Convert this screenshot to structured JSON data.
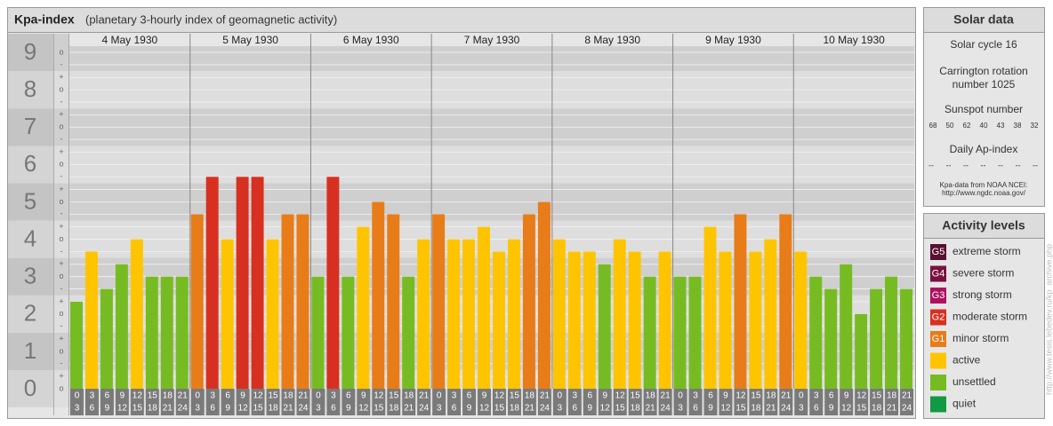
{
  "chart_data": {
    "type": "bar",
    "title": "Kpa-index",
    "subtitle": "(planetary 3-hourly index of geomagnetic activity)",
    "days": [
      "4 May 1930",
      "5 May 1930",
      "6 May 1930",
      "7 May 1930",
      "8 May 1930",
      "9 May 1930",
      "10 May 1930"
    ],
    "hour_ranges": [
      [
        "0",
        "3"
      ],
      [
        "3",
        "6"
      ],
      [
        "6",
        "9"
      ],
      [
        "9",
        "12"
      ],
      [
        "12",
        "15"
      ],
      [
        "15",
        "18"
      ],
      [
        "18",
        "21"
      ],
      [
        "21",
        "24"
      ]
    ],
    "values": [
      2.33,
      3.67,
      2.67,
      3.33,
      4,
      3,
      3,
      3,
      4.67,
      5.67,
      4,
      5.67,
      5.67,
      4,
      4.67,
      4.67,
      3,
      5.67,
      3,
      4.33,
      5,
      4.67,
      3,
      4,
      4.67,
      4,
      4,
      4.33,
      3.67,
      4,
      4.67,
      5,
      4,
      3.67,
      3.67,
      3.33,
      4,
      3.67,
      3,
      3.67,
      3,
      3,
      4.33,
      3.67,
      4.67,
      3.67,
      4,
      4.67,
      3.67,
      3,
      2.67,
      3.33,
      2,
      2.67,
      3,
      2.67
    ],
    "colors": [
      "#77bb22",
      "#ffc400",
      "#77bb22",
      "#77bb22",
      "#ffc400",
      "#77bb22",
      "#77bb22",
      "#77bb22",
      "#e87c18",
      "#d83020",
      "#ffc400",
      "#d83020",
      "#d83020",
      "#ffc400",
      "#e87c18",
      "#e87c18",
      "#77bb22",
      "#d83020",
      "#77bb22",
      "#ffc400",
      "#e87c18",
      "#e87c18",
      "#77bb22",
      "#ffc400",
      "#e87c18",
      "#ffc400",
      "#ffc400",
      "#ffc400",
      "#ffc400",
      "#ffc400",
      "#e87c18",
      "#e87c18",
      "#ffc400",
      "#ffc400",
      "#ffc400",
      "#77bb22",
      "#ffc400",
      "#ffc400",
      "#77bb22",
      "#ffc400",
      "#77bb22",
      "#77bb22",
      "#ffc400",
      "#ffc400",
      "#e87c18",
      "#ffc400",
      "#ffc400",
      "#e87c18",
      "#ffc400",
      "#77bb22",
      "#77bb22",
      "#77bb22",
      "#77bb22",
      "#77bb22",
      "#77bb22",
      "#77bb22"
    ],
    "ylim": [
      0,
      9.5
    ],
    "yticks": [
      0,
      1,
      2,
      3,
      4,
      5,
      6,
      7,
      8,
      9
    ],
    "minor_yticks": [
      {
        "value": 0,
        "label": "o"
      },
      {
        "value": 0.33,
        "label": "+"
      },
      {
        "value": 0.67,
        "label": "-"
      },
      {
        "value": 1,
        "label": "o"
      },
      {
        "value": 1.33,
        "label": "+"
      },
      {
        "value": 1.67,
        "label": "-"
      },
      {
        "value": 2,
        "label": "o"
      },
      {
        "value": 2.33,
        "label": "+"
      },
      {
        "value": 2.67,
        "label": "-"
      },
      {
        "value": 3,
        "label": "o"
      },
      {
        "value": 3.33,
        "label": "+"
      },
      {
        "value": 3.67,
        "label": "-"
      },
      {
        "value": 4,
        "label": "o"
      },
      {
        "value": 4.33,
        "label": "+"
      },
      {
        "value": 4.67,
        "label": "-"
      },
      {
        "value": 5,
        "label": "o"
      },
      {
        "value": 5.33,
        "label": "+"
      },
      {
        "value": 5.67,
        "label": "-"
      },
      {
        "value": 6,
        "label": "o"
      },
      {
        "value": 6.33,
        "label": "+"
      },
      {
        "value": 6.67,
        "label": "-"
      },
      {
        "value": 7,
        "label": "o"
      },
      {
        "value": 7.33,
        "label": "+"
      },
      {
        "value": 7.67,
        "label": "-"
      },
      {
        "value": 8,
        "label": "o"
      },
      {
        "value": 8.33,
        "label": "+"
      },
      {
        "value": 8.67,
        "label": "-"
      },
      {
        "value": 9,
        "label": "o"
      }
    ]
  },
  "solar_data": {
    "title": "Solar data",
    "cycle": "Solar cycle 16",
    "carrington": [
      "Carrington rotation",
      "number 1025"
    ],
    "sunspot_label": "Sunspot number",
    "sunspots": [
      68,
      50,
      62,
      40,
      43,
      38,
      32
    ],
    "ap_label": "Daily Ap-index",
    "ap": [
      "--",
      "--",
      "--",
      "--",
      "--",
      "--",
      "--"
    ],
    "source": [
      "Kpa-data from NOAA NCEI:",
      "http://www.ngdc.noaa.gov/"
    ]
  },
  "activity_levels": {
    "title": "Activity levels",
    "items": [
      {
        "code": "G5",
        "name": "extreme storm",
        "color": "#5a1030"
      },
      {
        "code": "G4",
        "name": "severe storm",
        "color": "#7a1040"
      },
      {
        "code": "G3",
        "name": "strong storm",
        "color": "#b01060"
      },
      {
        "code": "G2",
        "name": "moderate storm",
        "color": "#d83020"
      },
      {
        "code": "G1",
        "name": "minor storm",
        "color": "#e87c18"
      },
      {
        "name": "active",
        "color": "#ffc400"
      },
      {
        "name": "unsettled",
        "color": "#77bb22"
      },
      {
        "name": "quiet",
        "color": "#119944"
      }
    ]
  },
  "watermark": "http://www.tesis.lebedev.ru/kp_archive.php"
}
